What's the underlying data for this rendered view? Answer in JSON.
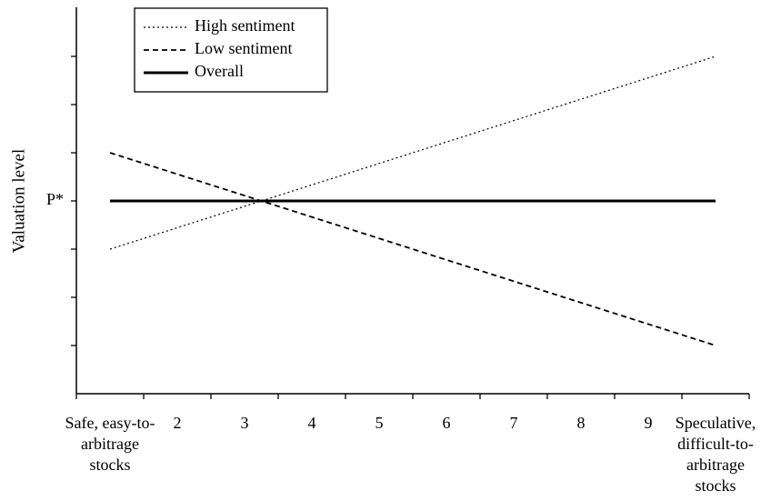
{
  "chart_data": {
    "type": "line",
    "title": "",
    "xlabel": "",
    "ylabel": "Valuation level",
    "x": [
      1,
      10
    ],
    "xlim": [
      1,
      10
    ],
    "ylim": [
      0,
      8
    ],
    "x_tick_labels": [
      {
        "x": 1,
        "lines": [
          "Safe, easy-to-",
          "arbitrage",
          "stocks"
        ]
      },
      {
        "x": 2,
        "lines": [
          "2"
        ]
      },
      {
        "x": 3,
        "lines": [
          "3"
        ]
      },
      {
        "x": 4,
        "lines": [
          "4"
        ]
      },
      {
        "x": 5,
        "lines": [
          "5"
        ]
      },
      {
        "x": 6,
        "lines": [
          "6"
        ]
      },
      {
        "x": 7,
        "lines": [
          "7"
        ]
      },
      {
        "x": 8,
        "lines": [
          "8"
        ]
      },
      {
        "x": 9,
        "lines": [
          "9"
        ]
      },
      {
        "x": 10,
        "lines": [
          "Speculative,",
          "difficult-to-",
          "arbitrage",
          "stocks"
        ]
      }
    ],
    "y_ticks": [
      1,
      2,
      3,
      4,
      5,
      6,
      7
    ],
    "y_tick_labels": [
      {
        "y": 4,
        "label": "P*"
      }
    ],
    "series": [
      {
        "name": "High sentiment",
        "style": "dotted",
        "values": [
          3,
          7
        ]
      },
      {
        "name": "Low sentiment",
        "style": "dashed",
        "values": [
          5,
          1
        ]
      },
      {
        "name": "Overall",
        "style": "solid",
        "values": [
          4,
          4
        ]
      }
    ],
    "legend": {
      "position": "top-left",
      "boxed": true
    },
    "grid": false,
    "line_color": "#000000"
  }
}
